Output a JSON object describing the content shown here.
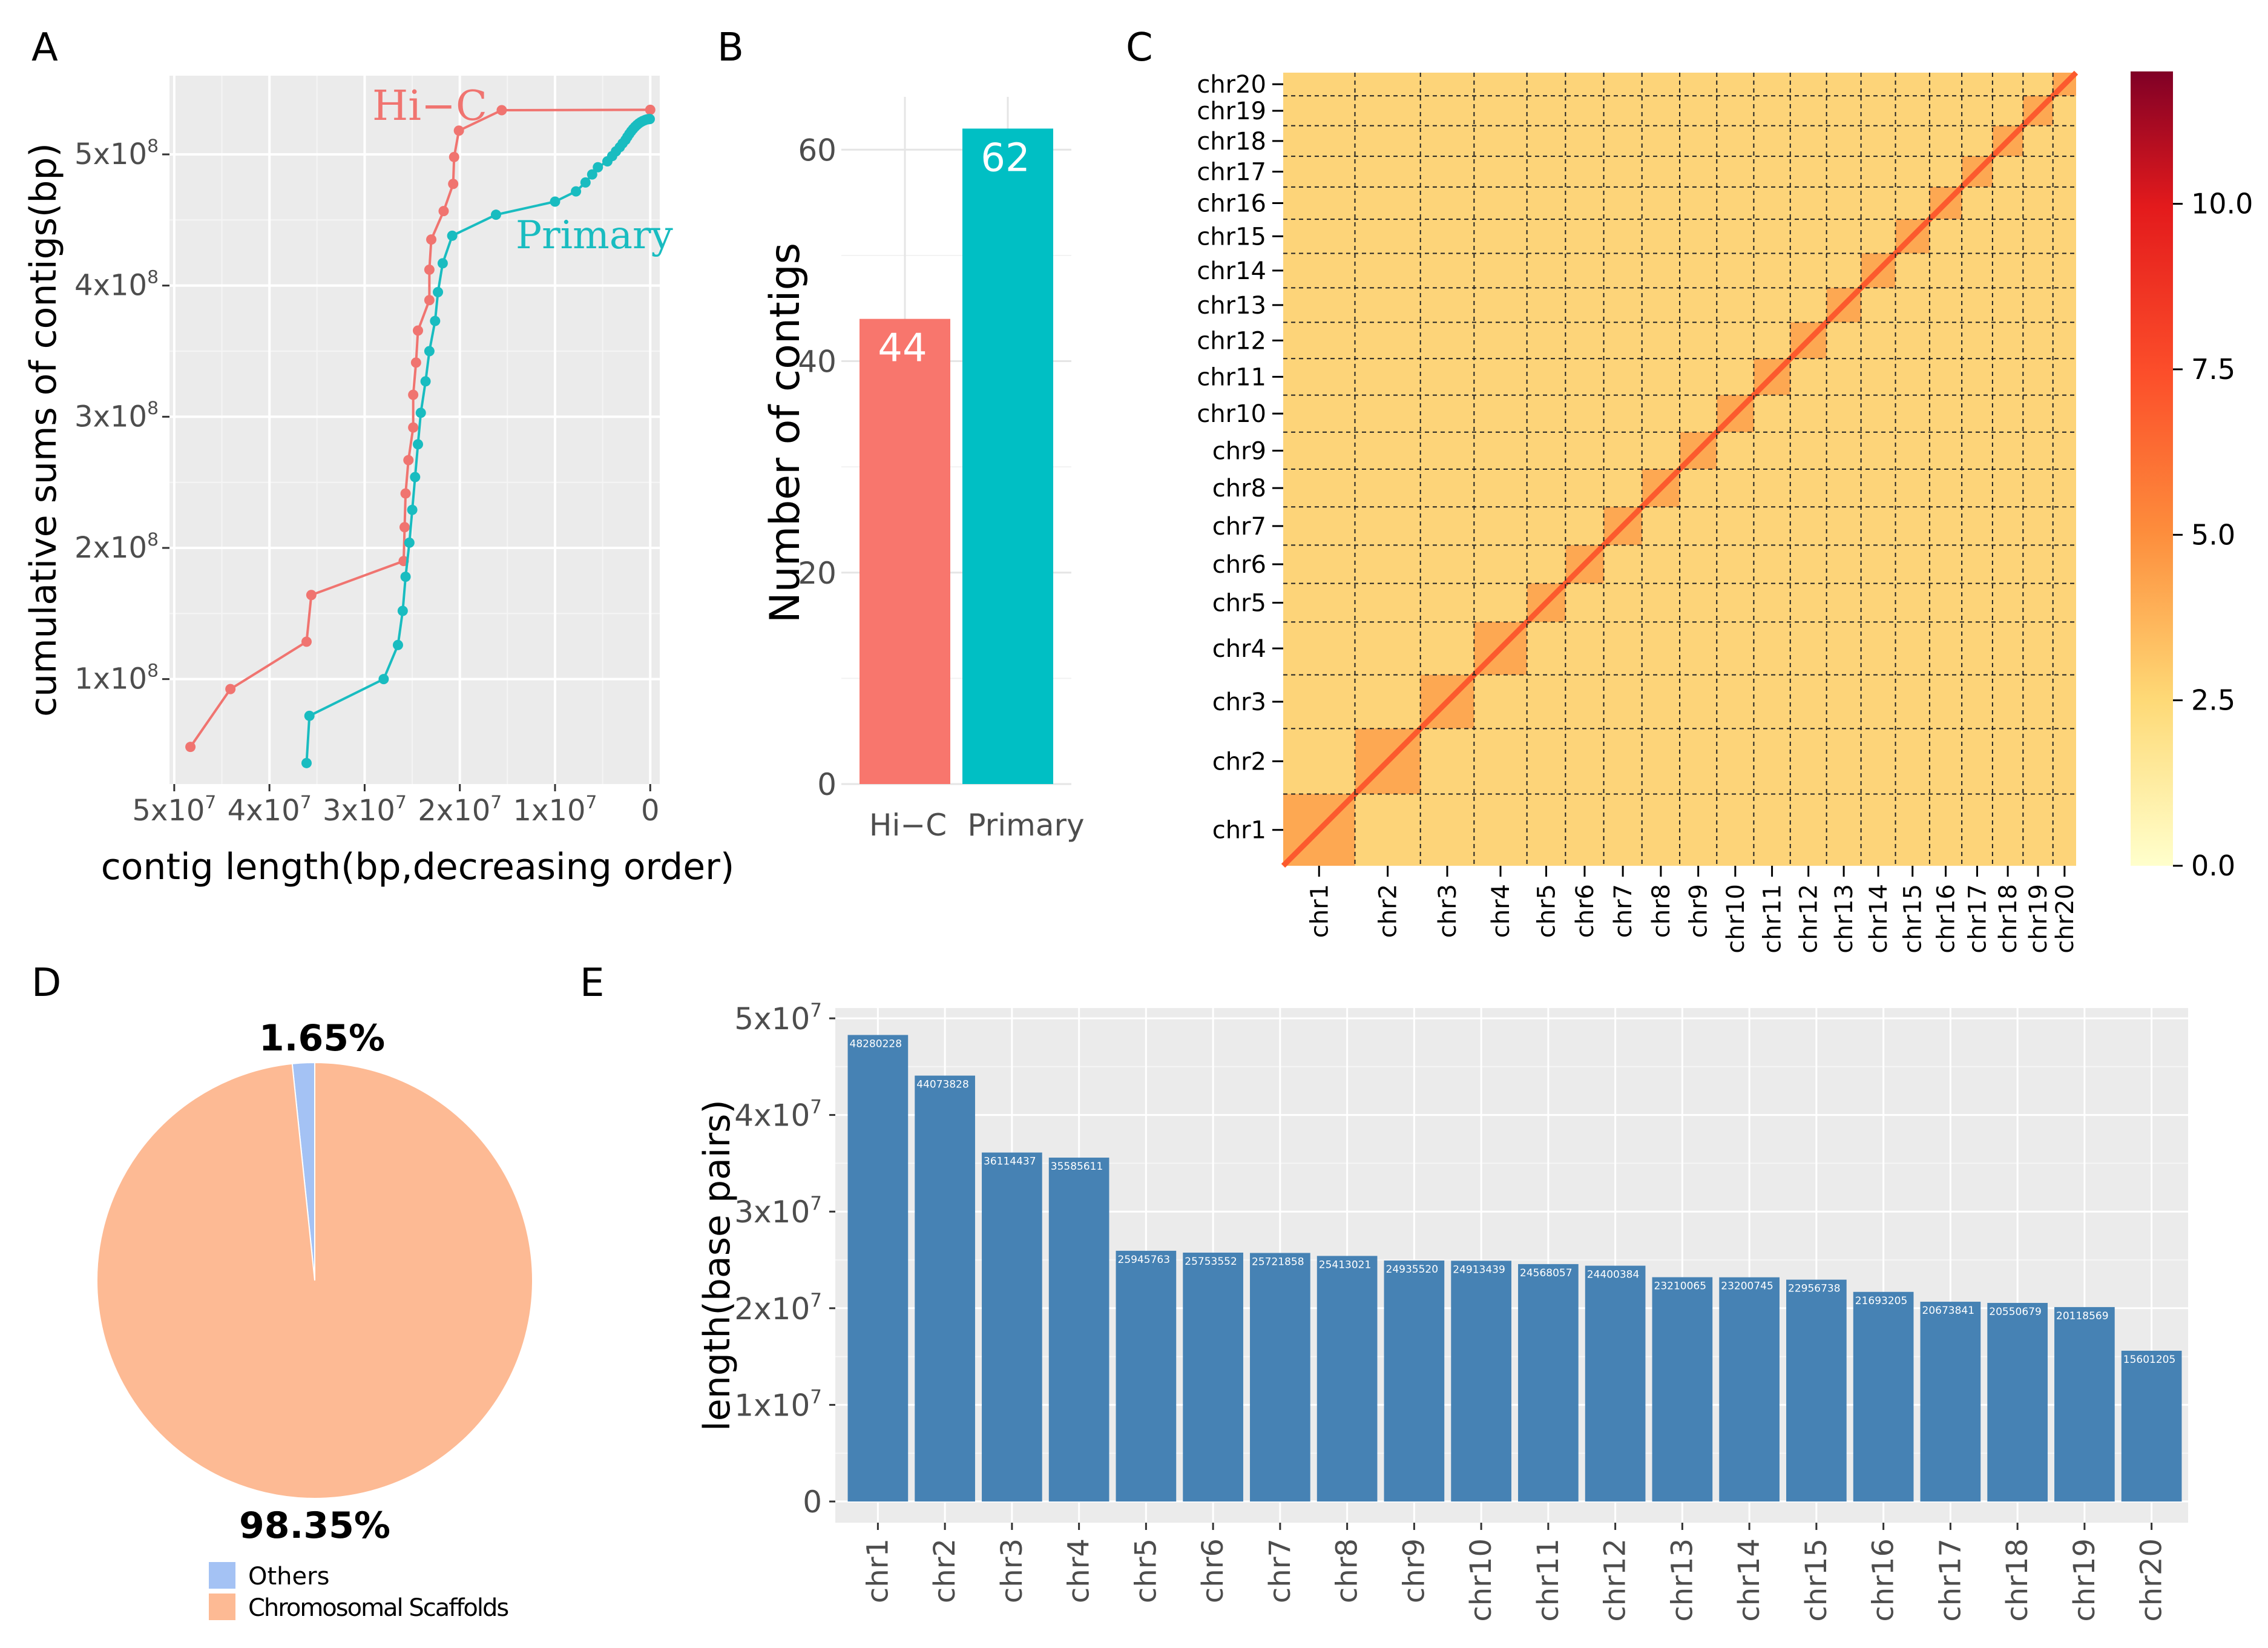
{
  "chart_data": [
    {
      "panel": "A",
      "type": "line",
      "title": "",
      "xlabel": "contig length(bp,decreasing order)",
      "ylabel": "cumulative sums of contigs(bp)",
      "xlim": [
        50500000,
        -1000000
      ],
      "ylim": [
        20000000,
        560000000
      ],
      "x_ticks": [
        {
          "value": 50000000,
          "mantissa": "5x10",
          "exp": "7"
        },
        {
          "value": 40000000,
          "mantissa": "4x10",
          "exp": "7"
        },
        {
          "value": 30000000,
          "mantissa": "3x10",
          "exp": "7"
        },
        {
          "value": 20000000,
          "mantissa": "2x10",
          "exp": "7"
        },
        {
          "value": 10000000,
          "mantissa": "1x10",
          "exp": "7"
        },
        {
          "value": 0,
          "mantissa": "0",
          "exp": ""
        }
      ],
      "y_ticks": [
        {
          "value": 100000000,
          "mantissa": "1x10",
          "exp": "8"
        },
        {
          "value": 200000000,
          "mantissa": "2x10",
          "exp": "8"
        },
        {
          "value": 300000000,
          "mantissa": "3x10",
          "exp": "8"
        },
        {
          "value": 400000000,
          "mantissa": "4x10",
          "exp": "8"
        },
        {
          "value": 500000000,
          "mantissa": "5x10",
          "exp": "8"
        }
      ],
      "series": [
        {
          "name": "Hi-C",
          "label": "Hi−C",
          "color": "#f07470",
          "x": [
            48300000,
            44100000,
            36100000,
            35600000,
            25900000,
            25800000,
            25700000,
            25400000,
            24900000,
            24900000,
            24600000,
            24400000,
            23200000,
            23200000,
            23000000,
            21700000,
            20700000,
            20600000,
            20100000,
            15600000,
            0
          ],
          "y": [
            48300000,
            92400000,
            128500000,
            164100000,
            190000000,
            215800000,
            241500000,
            266900000,
            291800000,
            316700000,
            341300000,
            365700000,
            388900000,
            412100000,
            435100000,
            456800000,
            477500000,
            498000000,
            518100000,
            533700000,
            534000000
          ]
        },
        {
          "name": "Primary",
          "label": "Primary",
          "color": "#19bcc0",
          "x": [
            36100000,
            35800000,
            28000000,
            26500000,
            26000000,
            25700000,
            25300000,
            25000000,
            24700000,
            24400000,
            24100000,
            23600000,
            23200000,
            22600000,
            22300000,
            21800000,
            20800000,
            16200000,
            10000000,
            7800000,
            6800000,
            6100000,
            5500000,
            4500000,
            4000000,
            3600000,
            3200000,
            2900000,
            2600000,
            2400000,
            2200000,
            2000000,
            1800000,
            1600000,
            1400000,
            1200000,
            1000000,
            800000,
            600000,
            450000,
            300000,
            150000,
            50000
          ],
          "y": [
            36000000,
            72000000,
            100000000,
            126000000,
            152000000,
            178000000,
            204000000,
            229000000,
            254000000,
            279000000,
            303000000,
            327000000,
            350000000,
            373000000,
            395000000,
            417000000,
            438000000,
            454000000,
            464000000,
            471800000,
            478600000,
            484700000,
            490200000,
            494700000,
            498700000,
            502300000,
            505500000,
            508400000,
            511000000,
            513400000,
            515600000,
            517600000,
            519400000,
            521000000,
            522400000,
            523600000,
            524600000,
            525400000,
            526000000,
            526450000,
            526750000,
            526900000,
            526950000
          ]
        }
      ]
    },
    {
      "panel": "B",
      "type": "bar",
      "title": "",
      "xlabel": "",
      "ylabel": "Number of contigs",
      "ylim": [
        0,
        65
      ],
      "y_ticks": [
        0,
        20,
        40,
        60
      ],
      "categories": [
        "Hi−C",
        "Primary"
      ],
      "values": [
        44,
        62
      ],
      "colors": [
        "#f8766d",
        "#00bfc4"
      ]
    },
    {
      "panel": "C",
      "type": "heatmap",
      "title": "",
      "chromosomes": [
        "chr1",
        "chr2",
        "chr3",
        "chr4",
        "chr5",
        "chr6",
        "chr7",
        "chr8",
        "chr9",
        "chr10",
        "chr11",
        "chr12",
        "chr13",
        "chr14",
        "chr15",
        "chr16",
        "chr17",
        "chr18",
        "chr19",
        "chr20"
      ],
      "lengths": [
        48280228,
        44073828,
        36114437,
        35585611,
        25945763,
        25753552,
        25721858,
        25413021,
        24935520,
        24913439,
        24568057,
        24400384,
        23210065,
        23200745,
        22956738,
        21693205,
        20673841,
        20550679,
        20118569,
        15601205
      ],
      "colorbar": {
        "min": 0.0,
        "max": 12.0,
        "ticks": [
          "0.0",
          "2.5",
          "5.0",
          "7.5",
          "10.0"
        ],
        "tick_values": [
          0,
          2.5,
          5,
          7.5,
          10
        ]
      },
      "background_value": 3.0,
      "diagonal_value": 7.0
    },
    {
      "panel": "D",
      "type": "pie",
      "title": "",
      "labels": [
        "Others",
        "Chromosomal Scaffolds"
      ],
      "values": [
        1.65,
        98.35
      ],
      "value_labels": [
        "1.65%",
        "98.35%"
      ],
      "colors": [
        "#a4c2f4",
        "#fdba94"
      ]
    },
    {
      "panel": "E",
      "type": "bar",
      "title": "",
      "xlabel": "",
      "ylabel": "length(base pairs)",
      "ylim": [
        0,
        52000000
      ],
      "y_ticks": [
        {
          "value": 0,
          "mantissa": "0",
          "exp": ""
        },
        {
          "value": 10000000,
          "mantissa": "1x10",
          "exp": "7"
        },
        {
          "value": 20000000,
          "mantissa": "2x10",
          "exp": "7"
        },
        {
          "value": 30000000,
          "mantissa": "3x10",
          "exp": "7"
        },
        {
          "value": 40000000,
          "mantissa": "4x10",
          "exp": "7"
        },
        {
          "value": 50000000,
          "mantissa": "5x10",
          "exp": "7"
        }
      ],
      "categories": [
        "chr1",
        "chr2",
        "chr3",
        "chr4",
        "chr5",
        "chr6",
        "chr7",
        "chr8",
        "chr9",
        "chr10",
        "chr11",
        "chr12",
        "chr13",
        "chr14",
        "chr15",
        "chr16",
        "chr17",
        "chr18",
        "chr19",
        "chr20"
      ],
      "values": [
        48280228,
        44073828,
        36114437,
        35585611,
        25945763,
        25753552,
        25721858,
        25413021,
        24935520,
        24913439,
        24568057,
        24400384,
        23210065,
        23200745,
        22956738,
        21693205,
        20673841,
        20550679,
        20118569,
        15601205
      ],
      "color": "#4682b4"
    }
  ],
  "panel_labels": [
    "A",
    "B",
    "C",
    "D",
    "E"
  ]
}
